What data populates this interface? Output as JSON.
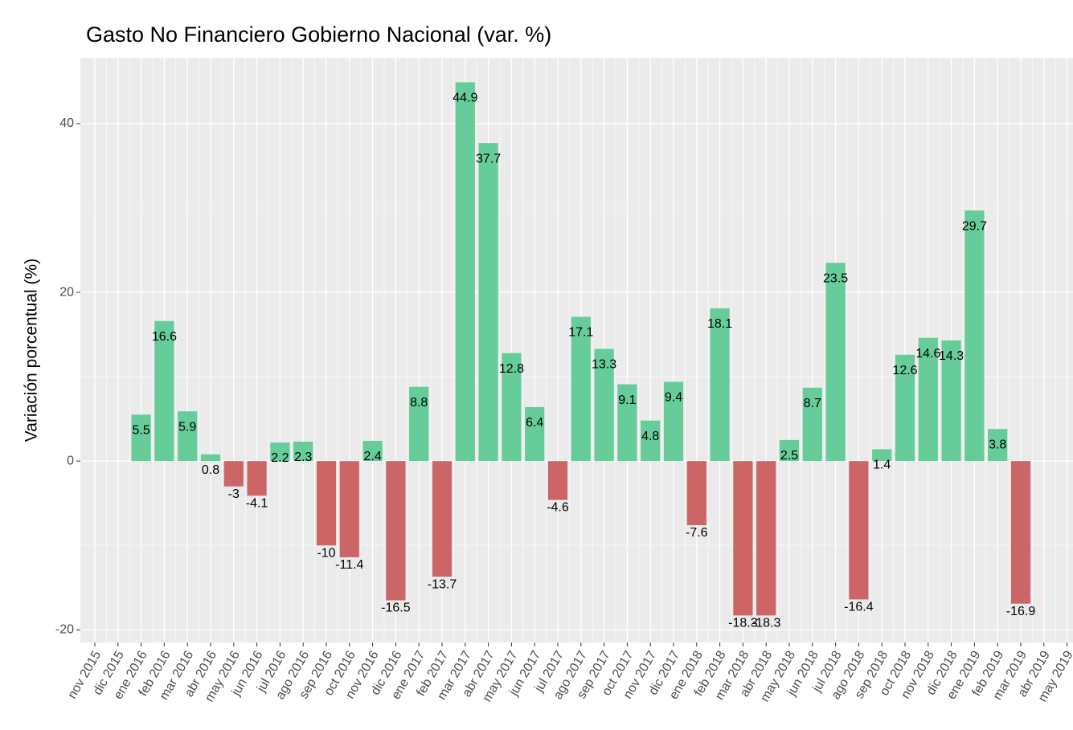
{
  "chart_data": {
    "type": "bar",
    "title": "Gasto No Financiero Gobierno Nacional (var. %)",
    "y_label": "Variación porcentual (%)",
    "categories": [
      "nov 2015",
      "dic 2015",
      "ene 2016",
      "feb 2016",
      "mar 2016",
      "abr 2016",
      "may 2016",
      "jun 2016",
      "jul 2016",
      "ago 2016",
      "sep 2016",
      "oct 2016",
      "nov 2016",
      "dic 2016",
      "ene 2017",
      "feb 2017",
      "mar 2017",
      "abr 2017",
      "may 2017",
      "jun 2017",
      "jul 2017",
      "ago 2017",
      "sep 2017",
      "oct 2017",
      "nov 2017",
      "dic 2017",
      "ene 2018",
      "feb 2018",
      "mar 2018",
      "abr 2018",
      "may 2018",
      "jun 2018",
      "jul 2018",
      "ago 2018",
      "sep 2018",
      "oct 2018",
      "nov 2018",
      "dic 2018",
      "ene 2019",
      "feb 2019",
      "mar 2019",
      "abr 2019",
      "may 2019"
    ],
    "values": [
      null,
      null,
      5.5,
      16.6,
      5.9,
      0.8,
      -3,
      -4.1,
      2.2,
      2.3,
      -10,
      -11.4,
      2.4,
      -16.5,
      8.8,
      -13.7,
      44.9,
      37.7,
      12.8,
      6.4,
      -4.6,
      17.1,
      13.3,
      9.1,
      4.8,
      9.4,
      -7.6,
      18.1,
      -18.3,
      -18.3,
      2.5,
      8.7,
      23.5,
      -16.4,
      1.4,
      12.6,
      14.6,
      14.3,
      29.7,
      3.8,
      -16.9,
      null,
      null
    ],
    "positive_color": "#66cc99",
    "negative_color": "#cc6666",
    "ylim": [
      -21.5,
      47.8
    ],
    "yticks": [
      -20,
      0,
      20,
      40
    ],
    "grid": true
  }
}
